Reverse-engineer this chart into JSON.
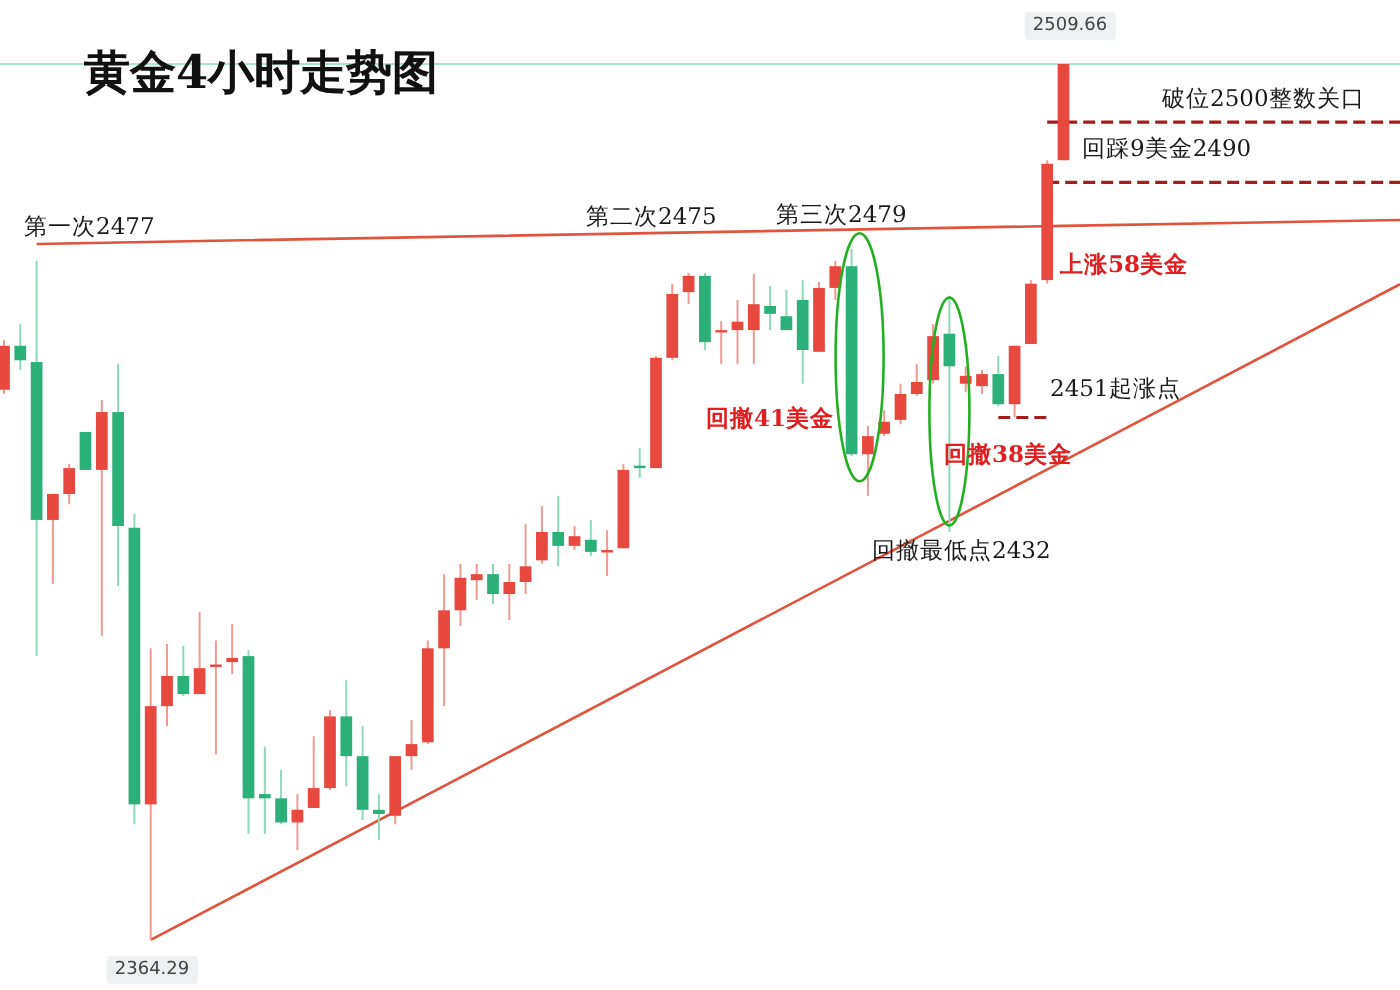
{
  "chart_data": {
    "type": "candlestick",
    "title": "黄金4小时走势图",
    "categories": [
      null,
      null,
      null,
      null,
      null,
      null,
      null,
      null,
      null,
      null,
      null,
      null,
      null,
      null,
      null,
      null,
      null,
      null,
      null,
      null,
      null,
      null,
      null,
      null,
      null,
      null,
      null,
      null,
      null,
      null,
      null,
      null,
      null,
      null,
      null,
      null,
      null,
      null,
      null,
      null,
      null,
      null,
      null,
      null,
      null,
      null,
      null,
      null,
      null,
      null,
      null,
      null,
      null,
      null,
      null,
      null,
      null,
      null,
      null,
      null,
      null,
      null,
      null,
      null,
      null,
      null
    ],
    "ohlc": [
      [
        2455.6,
        2463.9,
        2454.9,
        2462.9
      ],
      [
        2462.9,
        2466.5,
        2458.9,
        2460.5
      ],
      [
        2460.2,
        2477,
        2411.4,
        2434.0
      ],
      [
        2434.0,
        2438.3,
        2423.4,
        2438.3
      ],
      [
        2438.3,
        2443.3,
        2436.6,
        2442.6
      ],
      [
        2448.6,
        2448.6,
        2442.3,
        2442.3
      ],
      [
        2442.3,
        2453.9,
        2414.7,
        2451.9
      ],
      [
        2451.9,
        2459.9,
        2423.0,
        2433.0
      ],
      [
        2432.7,
        2435.0,
        2383.5,
        2386.8
      ],
      [
        2386.8,
        2412.7,
        2364.29,
        2403.1
      ],
      [
        2403.1,
        2413.4,
        2399.8,
        2408.1
      ],
      [
        2408.1,
        2413.1,
        2404.8,
        2405.1
      ],
      [
        2405.1,
        2418.7,
        2405.1,
        2409.4
      ],
      [
        2409.7,
        2414.0,
        2395.1,
        2410.0
      ],
      [
        2410.4,
        2416.7,
        2408.4,
        2411.1
      ],
      [
        2411.4,
        2412.4,
        2381.9,
        2387.8
      ],
      [
        2388.5,
        2396.4,
        2381.9,
        2387.8
      ],
      [
        2387.8,
        2392.5,
        2383.5,
        2383.8
      ],
      [
        2383.8,
        2388.5,
        2379.2,
        2385.9
      ],
      [
        2386.2,
        2398.1,
        2386.2,
        2389.5
      ],
      [
        2389.5,
        2402.4,
        2389.2,
        2401.4
      ],
      [
        2401.4,
        2407.4,
        2389.8,
        2394.8
      ],
      [
        2394.8,
        2399.8,
        2384.2,
        2385.9
      ],
      [
        2385.9,
        2388.5,
        2380.9,
        2385.2
      ],
      [
        2384.9,
        2394.8,
        2383.5,
        2394.8
      ],
      [
        2394.8,
        2400.8,
        2392.5,
        2396.8
      ],
      [
        2397.1,
        2414.0,
        2396.8,
        2412.7
      ],
      [
        2412.7,
        2425.0,
        2403.1,
        2419.0
      ],
      [
        2419.0,
        2426.7,
        2416.4,
        2424.4
      ],
      [
        2424.0,
        2426.7,
        2420.7,
        2425.0
      ],
      [
        2425.0,
        2426.7,
        2420.0,
        2421.7
      ],
      [
        2421.7,
        2426.7,
        2417.4,
        2423.7
      ],
      [
        2423.7,
        2433.3,
        2421.7,
        2426.3
      ],
      [
        2427.3,
        2436.3,
        2426.7,
        2432.0
      ],
      [
        2432.0,
        2438.0,
        2426.3,
        2429.7
      ],
      [
        2429.7,
        2433.0,
        2429.0,
        2431.3
      ],
      [
        2430.7,
        2434.0,
        2428.0,
        2428.7
      ],
      [
        2428.7,
        2432.3,
        2424.7,
        2429.0
      ],
      [
        2429.3,
        2443.3,
        2429.3,
        2442.3
      ],
      [
        2443.0,
        2445.9,
        2441.0,
        2442.6
      ],
      [
        2442.6,
        2461.2,
        2442.6,
        2460.9
      ],
      [
        2460.9,
        2473.2,
        2460.5,
        2471.5
      ],
      [
        2471.8,
        2475,
        2469.8,
        2474.5
      ],
      [
        2474.5,
        2475,
        2462.2,
        2463.5
      ],
      [
        2465.2,
        2467.0,
        2459.9,
        2465.5
      ],
      [
        2465.5,
        2470.5,
        2459.9,
        2466.9
      ],
      [
        2465.5,
        2474.8,
        2459.9,
        2469.8
      ],
      [
        2469.5,
        2472.8,
        2465.5,
        2468.2
      ],
      [
        2467.8,
        2472.2,
        2465.5,
        2465.5
      ],
      [
        2470.5,
        2473.8,
        2456.6,
        2462.2
      ],
      [
        2461.9,
        2473.5,
        2461.9,
        2472.5
      ],
      [
        2472.5,
        2477,
        2470.5,
        2476.1
      ],
      [
        2476.1,
        2479,
        2444.6,
        2444.9
      ],
      [
        2444.9,
        2449.6,
        2438.0,
        2447.9
      ],
      [
        2448.3,
        2452.2,
        2447.9,
        2450.3
      ],
      [
        2450.6,
        2456.6,
        2449.9,
        2454.9
      ],
      [
        2454.9,
        2459.9,
        2454.6,
        2456.9
      ],
      [
        2457.2,
        2466.5,
        2456.6,
        2464.5
      ],
      [
        2464.9,
        2471.2,
        2432,
        2459.5
      ],
      [
        2456.6,
        2459.5,
        2455.2,
        2457.9
      ],
      [
        2456.2,
        2458.9,
        2454.9,
        2458.2
      ],
      [
        2458.2,
        2461.2,
        2452.9,
        2453.2
      ],
      [
        2453.2,
        2462.9,
        2451,
        2462.9
      ],
      [
        2463.2,
        2473.8,
        2463.2,
        2473.2
      ],
      [
        2473.8,
        2493.7,
        2473.2,
        2493.1
      ],
      [
        2493.7,
        2509.66,
        2493.7,
        2509.66
      ]
    ],
    "series": [
      {
        "type": "line",
        "color": "#e0533d",
        "values": [
          null,
          null,
          2479.8,
          null,
          null,
          null,
          null,
          null,
          null,
          null,
          null,
          null,
          null,
          null,
          null,
          null,
          null,
          null,
          null,
          null,
          null,
          null,
          null,
          null,
          null,
          null,
          null,
          null,
          null,
          null,
          null,
          null,
          null,
          null,
          null,
          null,
          null,
          null,
          null,
          null,
          null,
          null,
          null,
          null,
          null,
          null,
          null,
          null,
          null,
          null,
          null,
          null,
          null,
          null,
          null,
          null,
          null,
          null,
          null,
          null,
          null,
          null,
          null,
          null,
          null,
          2482.8
        ]
      },
      {
        "type": "line",
        "color": "#e0533d",
        "values": [
          null,
          null,
          null,
          null,
          null,
          null,
          null,
          null,
          null,
          2364.3,
          null,
          null,
          null,
          null,
          null,
          null,
          null,
          null,
          null,
          null,
          null,
          null,
          null,
          null,
          null,
          null,
          null,
          null,
          null,
          null,
          null,
          null,
          null,
          null,
          null,
          null,
          null,
          null,
          null,
          null,
          null,
          null,
          null,
          null,
          null,
          null,
          null,
          null,
          null,
          null,
          null,
          null,
          null,
          null,
          null,
          null,
          null,
          null,
          null,
          null,
          null,
          null,
          null,
          null,
          null,
          2443.8
        ]
      },
      {
        "type": "line",
        "color": "#a51c1c",
        "line_style": "dashed",
        "values": [
          null,
          null,
          null,
          null,
          null,
          null,
          null,
          null,
          null,
          null,
          null,
          null,
          null,
          null,
          null,
          null,
          null,
          null,
          null,
          null,
          null,
          null,
          null,
          null,
          null,
          null,
          null,
          null,
          null,
          null,
          null,
          null,
          null,
          null,
          null,
          null,
          null,
          null,
          null,
          null,
          null,
          null,
          null,
          null,
          null,
          null,
          null,
          null,
          null,
          null,
          null,
          null,
          null,
          null,
          null,
          null,
          null,
          null,
          null,
          null,
          null,
          null,
          null,
          null,
          2500,
          2500
        ]
      },
      {
        "type": "line",
        "color": "#a51c1c",
        "line_style": "dashed",
        "values": [
          null,
          null,
          null,
          null,
          null,
          null,
          null,
          null,
          null,
          null,
          null,
          null,
          null,
          null,
          null,
          null,
          null,
          null,
          null,
          null,
          null,
          null,
          null,
          null,
          null,
          null,
          null,
          null,
          null,
          null,
          null,
          null,
          null,
          null,
          null,
          null,
          null,
          null,
          null,
          null,
          null,
          null,
          null,
          null,
          null,
          null,
          null,
          null,
          null,
          null,
          null,
          null,
          null,
          null,
          null,
          null,
          null,
          null,
          null,
          null,
          null,
          null,
          null,
          null,
          2490,
          2490
        ]
      },
      {
        "type": "line",
        "color": "#a51c1c",
        "line_style": "dashed",
        "values": [
          null,
          null,
          null,
          null,
          null,
          null,
          null,
          null,
          null,
          null,
          null,
          null,
          null,
          null,
          null,
          null,
          null,
          null,
          null,
          null,
          null,
          null,
          null,
          null,
          null,
          null,
          null,
          null,
          null,
          null,
          null,
          null,
          null,
          null,
          null,
          null,
          null,
          null,
          null,
          null,
          null,
          null,
          null,
          null,
          null,
          null,
          null,
          null,
          null,
          null,
          null,
          null,
          null,
          null,
          null,
          null,
          null,
          null,
          null,
          null,
          null,
          2451,
          null,
          null,
          2451,
          null
        ]
      }
    ],
    "ref_lines": [
      {
        "axis": "y",
        "value": 2509.66,
        "color": "#a8e6c8"
      }
    ],
    "annotations": [
      "第一次2477",
      "第二次2475",
      "第三次2479",
      "回撤41美金",
      "回撤38美金",
      "回撤最低点2432",
      "2451起涨点",
      "上涨58美金",
      "破位2500整数关口",
      "回踩9美金2490",
      "2509.66",
      "2364.29"
    ]
  }
}
